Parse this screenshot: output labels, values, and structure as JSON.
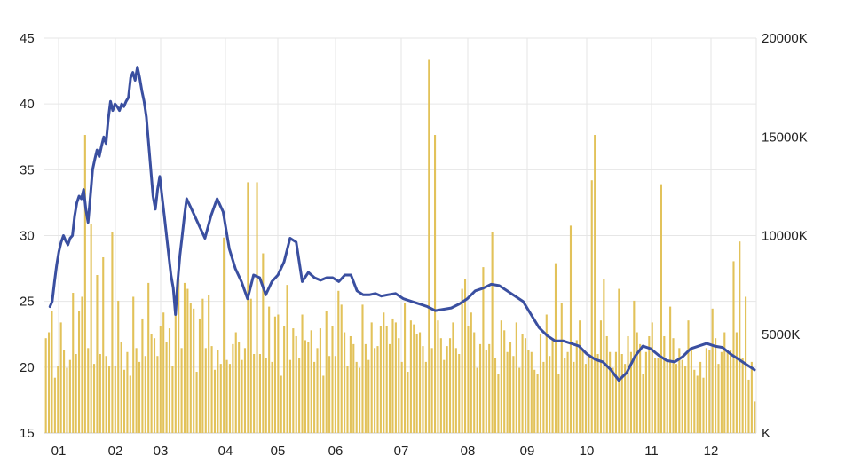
{
  "colors": {
    "price_line": "#3A4FA0",
    "volume_bar": "#E2C25A",
    "grid": "#E6E6E6",
    "axis_text": "#222222"
  },
  "chart_data": {
    "type": "line",
    "grid": true,
    "legend": "none",
    "x_ticks": [
      "01",
      "02",
      "03",
      "04",
      "05",
      "06",
      "07",
      "08",
      "09",
      "10",
      "11",
      "12"
    ],
    "y_left": {
      "ticks": [
        "15",
        "20",
        "25",
        "30",
        "35",
        "40",
        "45"
      ],
      "min": 15,
      "max": 45
    },
    "y_right": {
      "ticks": [
        "K",
        "5000K",
        "10000K",
        "15000K",
        "20000K"
      ],
      "min": 0,
      "max": 20000
    },
    "price_series": {
      "axis": "left",
      "type": "line",
      "x": [
        0.5,
        0.7,
        0.9,
        1.1,
        1.3,
        1.5,
        1.7,
        1.9,
        2.1,
        2.3,
        2.5,
        2.7,
        2.9,
        3.1,
        3.3,
        3.5,
        3.7,
        3.9,
        4.1,
        4.3,
        4.5,
        4.7,
        4.9,
        5.1,
        5.3,
        5.5,
        5.7,
        5.9,
        6.1,
        6.3,
        6.5,
        6.7,
        6.9,
        7.1,
        7.3,
        7.5,
        7.7,
        7.9,
        8.1,
        8.3,
        8.5,
        8.7,
        8.9,
        9.1,
        9.3,
        9.5,
        9.7,
        9.9,
        10.1,
        10.3,
        10.5,
        10.7,
        10.9,
        11.1,
        11.3,
        11.5,
        11.7,
        11.9,
        12.1,
        12.3,
        12.5,
        12.7
      ],
      "values": [
        24.6,
        25.0,
        26.5,
        27.8,
        28.8,
        29.5,
        30.0,
        29.6,
        29.3,
        29.8,
        30.0,
        31.5,
        32.5,
        33.0,
        32.8,
        33.5,
        32.0,
        31.0,
        33.0,
        35.0,
        35.8,
        36.5,
        36.0,
        36.8,
        37.5,
        37.0,
        38.8,
        40.2,
        39.5,
        40.0,
        39.8,
        39.5,
        40.0,
        39.8,
        40.2,
        40.5,
        42.0,
        42.4,
        41.8,
        42.8,
        42.0,
        41.0,
        40.2,
        39.0,
        37.0,
        35.0,
        33.0,
        32.0,
        33.5,
        34.5,
        33.0,
        31.5,
        30.0,
        28.5,
        27.0,
        26.0,
        24.0,
        26.5,
        28.5,
        30.0,
        31.5,
        32.8
      ],
      "x2": [
        6.3,
        6.5,
        6.7,
        6.9,
        7.1,
        7.3,
        7.5,
        7.7,
        7.9,
        8.1,
        8.3,
        8.5,
        8.7,
        8.9,
        9.1,
        9.3,
        9.5,
        9.7,
        9.9,
        10.1,
        10.3,
        10.5,
        10.7,
        10.9,
        11.1,
        11.3,
        11.5,
        11.7,
        11.9,
        12.1,
        12.3,
        12.5,
        12.7,
        12.9
      ],
      "values2": [
        32.5,
        31.8,
        30.8,
        29.8,
        31.5,
        32.8,
        31.8,
        29.0,
        27.5,
        26.5,
        25.2,
        27.0,
        26.8,
        25.5,
        26.5,
        27.0,
        28.0,
        29.8,
        29.5,
        26.5,
        27.2,
        26.8,
        26.6,
        26.8,
        26.8,
        26.5,
        27.0,
        27.0,
        25.8,
        25.5,
        25.5,
        25.6,
        25.4,
        25.5
      ],
      "x3": [
        12.9,
        13.2,
        13.5,
        13.8,
        14.1,
        14.4,
        14.7,
        15.0,
        15.3,
        15.6,
        15.9,
        16.2,
        16.5,
        16.8,
        17.1,
        17.4,
        17.7,
        18.0,
        18.3,
        18.6,
        18.9,
        19.2,
        19.5,
        19.8,
        20.1,
        20.4,
        20.7,
        21.0,
        21.3,
        21.6
      ],
      "values3": [
        25.5,
        25.6,
        25.2,
        25.0,
        24.8,
        24.6,
        24.3,
        24.4,
        24.5,
        24.8,
        25.2,
        25.8,
        26.0,
        26.3,
        26.2,
        25.8,
        25.4,
        25.0,
        24.0,
        23.0,
        22.4,
        22.0,
        22.0,
        21.8,
        21.6,
        21.0,
        20.6,
        20.4,
        19.8,
        19.0
      ],
      "x4": [
        21.6,
        21.9,
        22.2,
        22.5,
        22.8,
        23.1,
        23.4,
        23.7,
        24.0,
        24.3,
        24.6,
        24.9,
        25.2,
        25.5,
        25.8,
        26.1,
        26.4,
        26.7
      ],
      "values4": [
        19.0,
        19.6,
        20.8,
        21.6,
        21.4,
        20.9,
        20.5,
        20.4,
        20.8,
        21.4,
        21.6,
        21.8,
        21.6,
        21.5,
        21.0,
        20.6,
        20.2,
        19.8
      ]
    },
    "volume_series": {
      "axis": "right",
      "type": "bar",
      "values": [
        4800,
        5100,
        6200,
        2800,
        3400,
        5600,
        4200,
        3300,
        3700,
        7100,
        4000,
        6200,
        6900,
        15100,
        4300,
        10600,
        3500,
        8000,
        4000,
        8900,
        3900,
        3400,
        10200,
        3400,
        6700,
        4600,
        3200,
        4100,
        2900,
        6900,
        4300,
        3600,
        5800,
        3900,
        7600,
        5000,
        4800,
        3900,
        5400,
        6100,
        4600,
        5300,
        3400,
        6500,
        7800,
        4300,
        7600,
        7300,
        6600,
        6300,
        3100,
        5800,
        6800,
        4300,
        7000,
        4400,
        3200,
        4200,
        3500,
        9900,
        3700,
        3500,
        4500,
        5100,
        4600,
        3700,
        4300,
        12700,
        6800,
        4000,
        12700,
        4000,
        9100,
        3800,
        6400,
        3600,
        5900,
        6000,
        2900,
        5400,
        7500,
        3700,
        5300,
        4900,
        3800,
        6000,
        4700,
        4600,
        5200,
        3600,
        4300,
        5300,
        2900,
        6200,
        3900,
        5400,
        3900,
        7200,
        6500,
        5100,
        3400,
        4900,
        4500,
        3600,
        3300,
        6500,
        4500,
        3700,
        5600,
        4300,
        4400,
        5400,
        6100,
        5400,
        4500,
        5800,
        5600,
        4800,
        3600,
        6600,
        3100,
        5700,
        5500,
        5000,
        5100,
        4400,
        3600,
        18900,
        4300,
        15100,
        5700,
        4800,
        3700,
        4400,
        4800,
        5600,
        4300,
        4000,
        7300,
        7800,
        5400,
        6100,
        5100,
        3300,
        4500,
        8400,
        4200,
        4500,
        10200,
        3800,
        3000,
        5700,
        5200,
        4100,
        4600,
        3900,
        5600,
        3300,
        5000,
        4800,
        4200,
        4100,
        3200,
        3000,
        5000,
        3600,
        6000,
        3900,
        4700,
        8600,
        3000,
        6600,
        3800,
        4100,
        10500,
        3600,
        4700,
        5700,
        4200,
        3500,
        4000,
        12800,
        15100,
        4000,
        5700,
        7800,
        4900,
        4100,
        3300,
        4100,
        7300,
        4000,
        3500,
        4900,
        4100,
        6700,
        5100,
        4500,
        3000,
        4100,
        4900,
        5600,
        3800,
        3800,
        12600,
        4900,
        3600,
        6400,
        4800,
        3500,
        4300,
        3700,
        3400,
        5700,
        4200,
        3200,
        2900,
        3600,
        2800,
        4300,
        4200,
        6300,
        4800,
        3500,
        4100,
        5100,
        4200,
        4200,
        8700,
        5100,
        9700,
        3800,
        6900,
        2700,
        3600,
        1600
      ]
    },
    "x_domain": [
      0,
      26.9
    ]
  }
}
